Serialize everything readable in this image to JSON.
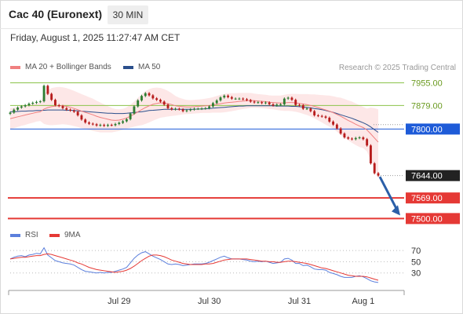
{
  "header": {
    "title": "Cac 40 (Euronext)",
    "timeframe": "30 MIN",
    "timestamp": "Friday, August 1, 2025 11:27:47 AM CET"
  },
  "legend": {
    "ma20_bb": "MA 20 + Bollinger Bands",
    "ma50": "MA 50",
    "rsi": "RSI",
    "ma9": "9MA"
  },
  "copyright": "Research © 2025 Trading Central",
  "colors": {
    "ma20": "#f08080",
    "band_fill": "#fde3e3",
    "ma50": "#2b4f8c",
    "up_candle": "#2e7d32",
    "down_candle": "#b71c1c",
    "resistance_green": "#8bc34a",
    "pivot_blue": "#1e5bd8",
    "support_red": "#e53935",
    "arrow": "#2b5fa8",
    "rsi_line": "#5b7fdc",
    "rsi_ma": "#e53935"
  },
  "chart_data": [
    {
      "type": "candlestick",
      "title": "Cac 40 (Euronext)",
      "timeframe": "30 MIN",
      "x_labels": [
        "Jul 29",
        "Jul 30",
        "Jul 31",
        "Aug 1"
      ],
      "ylim": [
        7480,
        7980
      ],
      "levels": [
        {
          "value": 7955.0,
          "label": "7955.00",
          "kind": "resistance"
        },
        {
          "value": 7879.0,
          "label": "7879.00",
          "kind": "resistance"
        },
        {
          "value": 7800.0,
          "label": "7800.00",
          "kind": "pivot"
        },
        {
          "value": 7644.0,
          "label": "7644.00",
          "kind": "last"
        },
        {
          "value": 7569.0,
          "label": "7569.00",
          "kind": "support"
        },
        {
          "value": 7500.0,
          "label": "7500.00",
          "kind": "support"
        }
      ],
      "close": [
        7855,
        7865,
        7872,
        7876,
        7880,
        7885,
        7888,
        7891,
        7893,
        7945,
        7918,
        7898,
        7880,
        7877,
        7870,
        7865,
        7862,
        7858,
        7846,
        7832,
        7822,
        7818,
        7816,
        7812,
        7814,
        7811,
        7814,
        7813,
        7817,
        7821,
        7826,
        7833,
        7852,
        7876,
        7896,
        7911,
        7920,
        7913,
        7903,
        7898,
        7892,
        7882,
        7870,
        7866,
        7868,
        7866,
        7860,
        7863,
        7866,
        7868,
        7868,
        7869,
        7870,
        7876,
        7887,
        7896,
        7906,
        7912,
        7907,
        7902,
        7902,
        7902,
        7900,
        7897,
        7892,
        7889,
        7890,
        7887,
        7889,
        7883,
        7879,
        7882,
        7883,
        7902,
        7905,
        7898,
        7881,
        7880,
        7868,
        7869,
        7860,
        7846,
        7844,
        7842,
        7838,
        7825,
        7815,
        7802,
        7785,
        7772,
        7768,
        7766,
        7770,
        7772,
        7766,
        7745,
        7685,
        7652,
        7644
      ],
      "ma20": [
        7835,
        7838,
        7841,
        7844,
        7847,
        7850,
        7853,
        7856,
        7858,
        7867,
        7872,
        7875,
        7877,
        7878,
        7878,
        7876,
        7873,
        7869,
        7865,
        7860,
        7856,
        7852,
        7848,
        7843,
        7839,
        7836,
        7833,
        7830,
        7829,
        7830,
        7833,
        7837,
        7843,
        7850,
        7858,
        7865,
        7872,
        7878,
        7883,
        7886,
        7888,
        7887,
        7885,
        7882,
        7878,
        7876,
        7875,
        7874,
        7874,
        7875,
        7876,
        7877,
        7878,
        7879,
        7881,
        7883,
        7885,
        7887,
        7889,
        7890,
        7891,
        7893,
        7894,
        7895,
        7896,
        7895,
        7894,
        7893,
        7892,
        7890,
        7889,
        7888,
        7887,
        7888,
        7889,
        7889,
        7888,
        7886,
        7884,
        7882,
        7879,
        7876,
        7872,
        7868,
        7864,
        7860,
        7855,
        7849,
        7843,
        7836,
        7829,
        7823,
        7816,
        7810,
        7805,
        7797,
        7784,
        7770,
        7756
      ],
      "ma50": [
        7858,
        7858,
        7859,
        7860,
        7860,
        7861,
        7861,
        7862,
        7862,
        7863,
        7864,
        7864,
        7864,
        7864,
        7864,
        7863,
        7863,
        7862,
        7861,
        7860,
        7859,
        7858,
        7857,
        7856,
        7855,
        7854,
        7853,
        7853,
        7852,
        7852,
        7852,
        7853,
        7854,
        7855,
        7857,
        7858,
        7860,
        7862,
        7863,
        7864,
        7865,
        7866,
        7866,
        7866,
        7866,
        7866,
        7866,
        7866,
        7866,
        7866,
        7867,
        7867,
        7868,
        7869,
        7870,
        7871,
        7872,
        7873,
        7874,
        7875,
        7876,
        7877,
        7877,
        7878,
        7878,
        7878,
        7878,
        7878,
        7878,
        7878,
        7878,
        7877,
        7877,
        7877,
        7877,
        7876,
        7876,
        7875,
        7874,
        7873,
        7871,
        7869,
        7867,
        7865,
        7862,
        7859,
        7856,
        7852,
        7848,
        7844,
        7840,
        7836,
        7831,
        7826,
        7821,
        7815,
        7807,
        7798,
        7789
      ],
      "bb_width": [
        35,
        35,
        34,
        33,
        33,
        32,
        32,
        31,
        31,
        50,
        58,
        62,
        63,
        63,
        62,
        61,
        60,
        59,
        58,
        57,
        56,
        55,
        54,
        52,
        50,
        47,
        44,
        41,
        38,
        36,
        35,
        36,
        38,
        42,
        47,
        52,
        55,
        56,
        55,
        53,
        50,
        47,
        43,
        38,
        33,
        29,
        26,
        24,
        23,
        23,
        23,
        23,
        24,
        25,
        26,
        28,
        30,
        31,
        31,
        30,
        29,
        28,
        27,
        26,
        25,
        24,
        23,
        23,
        23,
        23,
        23,
        24,
        25,
        27,
        28,
        29,
        30,
        31,
        33,
        35,
        37,
        40,
        43,
        46,
        49,
        52,
        55,
        58,
        62,
        65,
        67,
        69,
        70,
        70,
        69,
        72,
        88,
        100,
        110
      ]
    },
    {
      "type": "line",
      "title": "RSI",
      "series_names": [
        "RSI",
        "9MA"
      ],
      "ylim": [
        10,
        80
      ],
      "yticks": [
        70,
        50,
        30
      ],
      "rsi": [
        55,
        58,
        60,
        61,
        59,
        62,
        63,
        65,
        64,
        75,
        62,
        57,
        52,
        50,
        48,
        47,
        46,
        44,
        40,
        36,
        33,
        32,
        31,
        30,
        31,
        30,
        31,
        31,
        33,
        35,
        37,
        40,
        48,
        56,
        62,
        66,
        68,
        64,
        60,
        57,
        54,
        50,
        46,
        45,
        46,
        45,
        43,
        44,
        45,
        46,
        46,
        46,
        47,
        49,
        52,
        55,
        58,
        60,
        57,
        55,
        55,
        55,
        54,
        53,
        51,
        50,
        51,
        50,
        51,
        49,
        47,
        48,
        49,
        55,
        56,
        53,
        47,
        47,
        43,
        44,
        41,
        37,
        36,
        36,
        35,
        31,
        29,
        27,
        24,
        22,
        22,
        22,
        24,
        25,
        23,
        20,
        16,
        14,
        13
      ],
      "rsi_ma": [
        55,
        56,
        57,
        58,
        58,
        59,
        60,
        61,
        61,
        63,
        64,
        63,
        61,
        59,
        57,
        55,
        53,
        51,
        48,
        46,
        43,
        40,
        38,
        36,
        35,
        34,
        33,
        32,
        31,
        32,
        33,
        35,
        38,
        42,
        47,
        52,
        56,
        60,
        62,
        62,
        61,
        59,
        56,
        53,
        51,
        49,
        47,
        46,
        45,
        45,
        45,
        45,
        46,
        46,
        47,
        49,
        51,
        53,
        54,
        55,
        55,
        55,
        55,
        55,
        54,
        53,
        52,
        51,
        51,
        50,
        50,
        49,
        49,
        50,
        51,
        51,
        50,
        49,
        48,
        47,
        45,
        43,
        41,
        39,
        38,
        36,
        34,
        32,
        30,
        28,
        26,
        25,
        24,
        24,
        24,
        23,
        21,
        19,
        17
      ]
    }
  ]
}
